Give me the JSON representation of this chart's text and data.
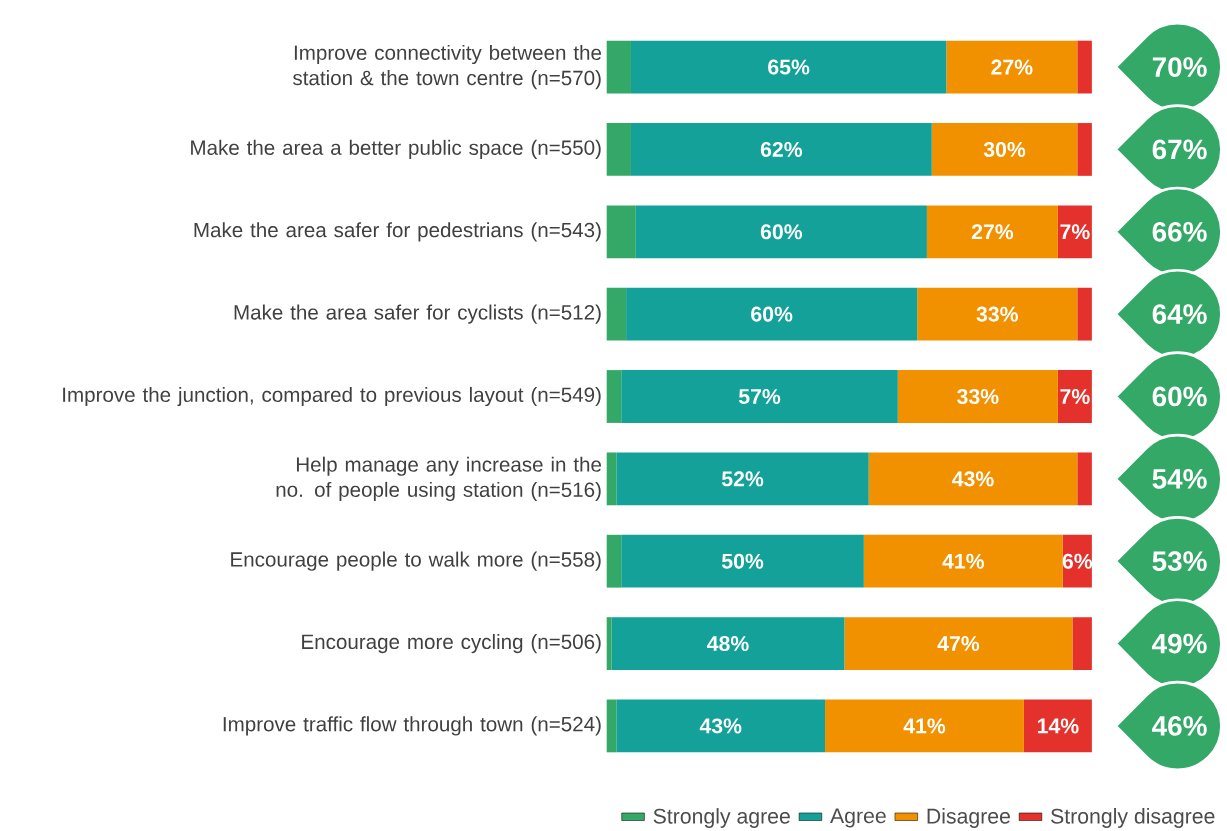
{
  "chart_data": {
    "type": "bar",
    "orientation": "horizontal",
    "stacked": true,
    "legend": "bottom right",
    "categories": [
      "Improve connectivity between the station & the town centre (n=570)",
      "Make the area a better public space (n=550)",
      "Make the area safer for pedestrians (n=543)",
      "Make the area safer for cyclists (n=512)",
      "Improve the junction, compared to previous layout (n=549)",
      "Help manage any increase in the no. of people using station (n=516)",
      "Encourage people to walk more (n=558)",
      "Encourage more cycling (n=506)",
      "Improve traffic flow through town (n=524)"
    ],
    "series": [
      {
        "name": "Strongly agree",
        "color": "#33a867",
        "values": [
          5,
          5,
          6,
          4,
          3,
          2,
          3,
          1,
          2
        ]
      },
      {
        "name": "Agree",
        "color": "#13a19a",
        "values": [
          65,
          62,
          60,
          60,
          57,
          52,
          50,
          48,
          43
        ],
        "value_labels": [
          "65%",
          "62%",
          "60%",
          "60%",
          "57%",
          "52%",
          "50%",
          "48%",
          "43%"
        ]
      },
      {
        "name": "Disagree",
        "color": "#f29100",
        "values": [
          27,
          30,
          27,
          33,
          33,
          43,
          41,
          47,
          41
        ],
        "value_labels": [
          "27%",
          "30%",
          "27%",
          "33%",
          "33%",
          "43%",
          "41%",
          "47%",
          "41%"
        ]
      },
      {
        "name": "Strongly disagree",
        "color": "#e5312b",
        "values": [
          3,
          3,
          7,
          3,
          7,
          3,
          6,
          4,
          14
        ],
        "value_labels": [
          null,
          null,
          "7%",
          null,
          "7%",
          null,
          "6%",
          null,
          "14%"
        ]
      }
    ],
    "annotations": [
      "70%",
      "67%",
      "66%",
      "64%",
      "60%",
      "54%",
      "53%",
      "49%",
      "46%"
    ]
  }
}
